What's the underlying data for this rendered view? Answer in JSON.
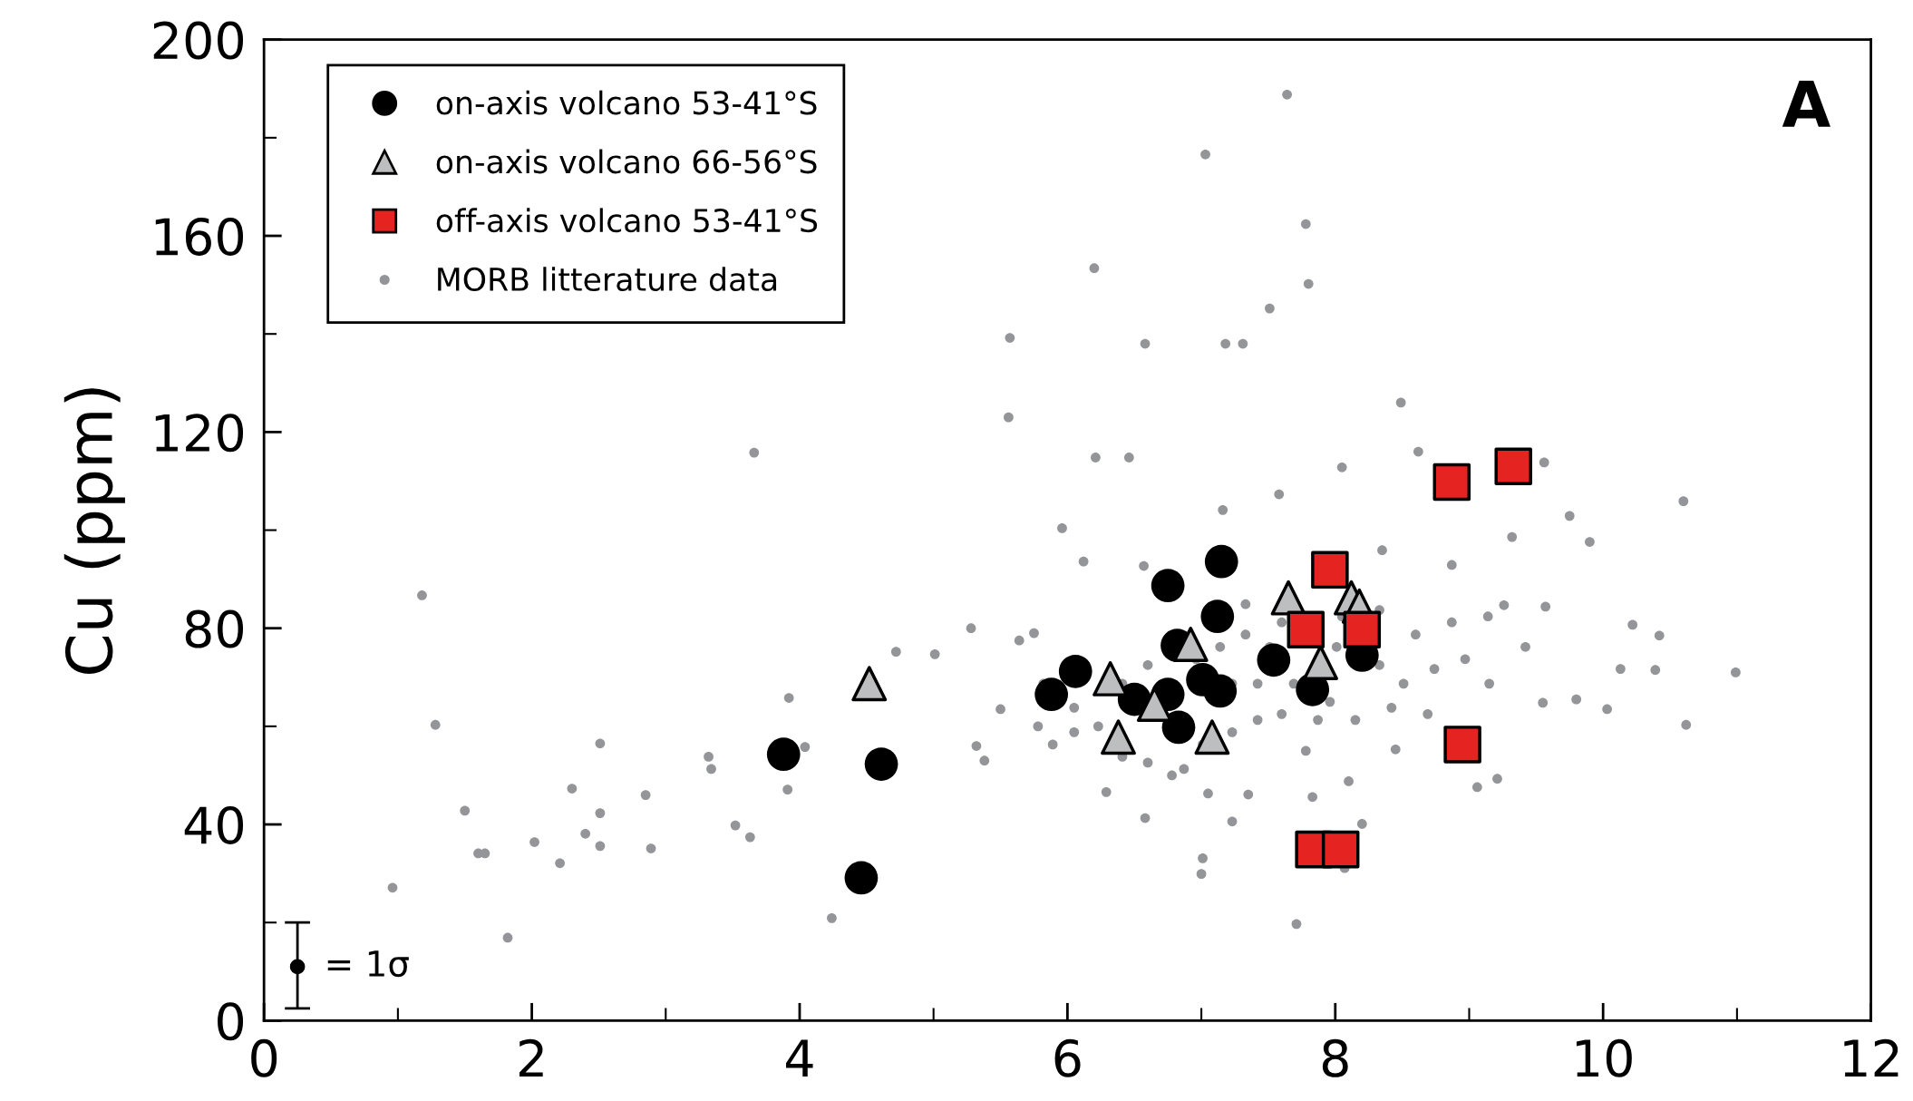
{
  "chart_data": {
    "type": "scatter",
    "ylabel": "Cu (ppm)",
    "xlim": [
      0,
      12
    ],
    "ylim": [
      0,
      200
    ],
    "xticks": [
      0,
      2,
      4,
      6,
      8,
      10,
      12
    ],
    "yticks": [
      0,
      40,
      80,
      120,
      160,
      200
    ],
    "grid": false,
    "legend": "top left",
    "annotations": [
      "A",
      "= 1σ"
    ],
    "series": [
      {
        "name": "MORB litterature data",
        "color": "#939598",
        "marker": "circle",
        "x": [
          7.64,
          7.03,
          7.78,
          6.2,
          7.8,
          7.51,
          5.57,
          6.58,
          7.18,
          7.31,
          5.56,
          3.66,
          6.21,
          6.46,
          9.56,
          10.6,
          1.18,
          1.28,
          1.5,
          1.6,
          1.65,
          2.02,
          2.21,
          2.3,
          2.51,
          2.51,
          2.51,
          2.4,
          2.85,
          2.89,
          3.32,
          3.34,
          3.52,
          3.63,
          1.82,
          0.96,
          4.24,
          3.91,
          4.04,
          3.92,
          4.72,
          5.01,
          5.28,
          5.75,
          5.5,
          5.32,
          5.38,
          5.96,
          6.12,
          6.57,
          7.16,
          7.58,
          8.05,
          8.49,
          8.62,
          8.35,
          8.87,
          9.32,
          9.75,
          9.9,
          10.22,
          10.42,
          10.13,
          10.39,
          10.99,
          10.62,
          10.03,
          9.8,
          9.55,
          9.57,
          9.26,
          9.14,
          8.74,
          8.69,
          9.21,
          9.06,
          8.45,
          8.1,
          7.83,
          8.07,
          7.71,
          7.23,
          7.0,
          7.01,
          6.58,
          6.29,
          7.35,
          8.2,
          5.78,
          5.89,
          6.05,
          6.23,
          6.41,
          6.6,
          6.78,
          7.01,
          7.23,
          7.42,
          7.6,
          7.69,
          7.51,
          7.33,
          7.14,
          6.96,
          6.6,
          6.41,
          7.23,
          7.42,
          7.33,
          7.6,
          8.01,
          8.33,
          8.51,
          8.42,
          8.15,
          7.96,
          8.6,
          8.87,
          8.97,
          9.15,
          9.42,
          8.33,
          8.05,
          7.87,
          7.78,
          7.05,
          6.87,
          6.05,
          5.82,
          5.64
        ],
        "values": [
          188.8,
          176.6,
          162.4,
          153.4,
          150.2,
          145.2,
          139.2,
          138,
          138,
          138,
          123,
          115.8,
          114.8,
          114.8,
          113.8,
          105.9,
          86.7,
          60.3,
          42.8,
          34.1,
          34.1,
          36.4,
          32.1,
          47.3,
          56.5,
          42.3,
          35.6,
          38.1,
          46,
          35.1,
          53.8,
          51.3,
          39.8,
          37.4,
          16.9,
          27.1,
          20.9,
          47.1,
          55.8,
          65.8,
          75.2,
          74.7,
          80,
          79,
          63.5,
          56,
          53,
          100.4,
          93.6,
          92.7,
          104.1,
          107.3,
          112.8,
          126,
          116,
          95.9,
          92.9,
          98.6,
          102.9,
          97.6,
          80.7,
          78.5,
          71.7,
          71.5,
          71,
          60.3,
          63.5,
          65.5,
          64.8,
          84.4,
          84.7,
          82.4,
          71.7,
          62.5,
          49.3,
          47.6,
          55.3,
          48.8,
          45.6,
          31.1,
          19.7,
          40.6,
          29.9,
          33.1,
          41.3,
          46.6,
          46.1,
          40.1,
          60,
          56.3,
          58.8,
          60,
          53.8,
          52.6,
          50,
          56.3,
          58.8,
          61.3,
          62.5,
          68.7,
          76.2,
          78.7,
          76.2,
          73.7,
          72.5,
          68.7,
          68.7,
          68.7,
          84.9,
          81.2,
          76.2,
          72.5,
          68.7,
          63.8,
          61.3,
          65,
          78.7,
          81.2,
          73.7,
          68.7,
          76.2,
          83.7,
          82.4,
          61.3,
          55,
          46.3,
          51.3,
          63.8,
          68.7,
          77.5
        ]
      },
      {
        "name": "on-axis volcano 53-41°S",
        "color": "#000000",
        "marker": "circle",
        "x": [
          3.88,
          4.61,
          4.46,
          5.88,
          6.06,
          6.5,
          6.75,
          7.15,
          7.12,
          6.82,
          6.75,
          6.85,
          7.01,
          7.14,
          7.54,
          7.83,
          8.2,
          6.83
        ],
        "values": [
          54.3,
          52.3,
          29.1,
          66.5,
          71.2,
          65.5,
          88.7,
          93.6,
          82.4,
          76.5,
          66.5,
          null,
          69.5,
          67.2,
          73.5,
          67.5,
          74.5,
          59.8
        ]
      },
      {
        "name": "on-axis volcano 66-56°S",
        "color": "#bcbec0",
        "marker": "triangle",
        "x": [
          4.52,
          6.32,
          6.38,
          6.92,
          7.08,
          6.65,
          7.65,
          7.89,
          8.12,
          8.18
        ],
        "values": [
          68.7,
          69.7,
          57.8,
          76.7,
          57.8,
          64.5,
          86.2,
          73,
          86.2,
          84.5
        ]
      },
      {
        "name": "off-axis volcano 53-41°S",
        "color": "#e52421",
        "marker": "square",
        "x": [
          9.33,
          8.87,
          7.96,
          7.78,
          8.2,
          8.95,
          7.84,
          8.04
        ],
        "values": [
          113,
          109.8,
          91.9,
          79.7,
          79.7,
          56.3,
          34.9,
          34.9
        ]
      }
    ]
  }
}
